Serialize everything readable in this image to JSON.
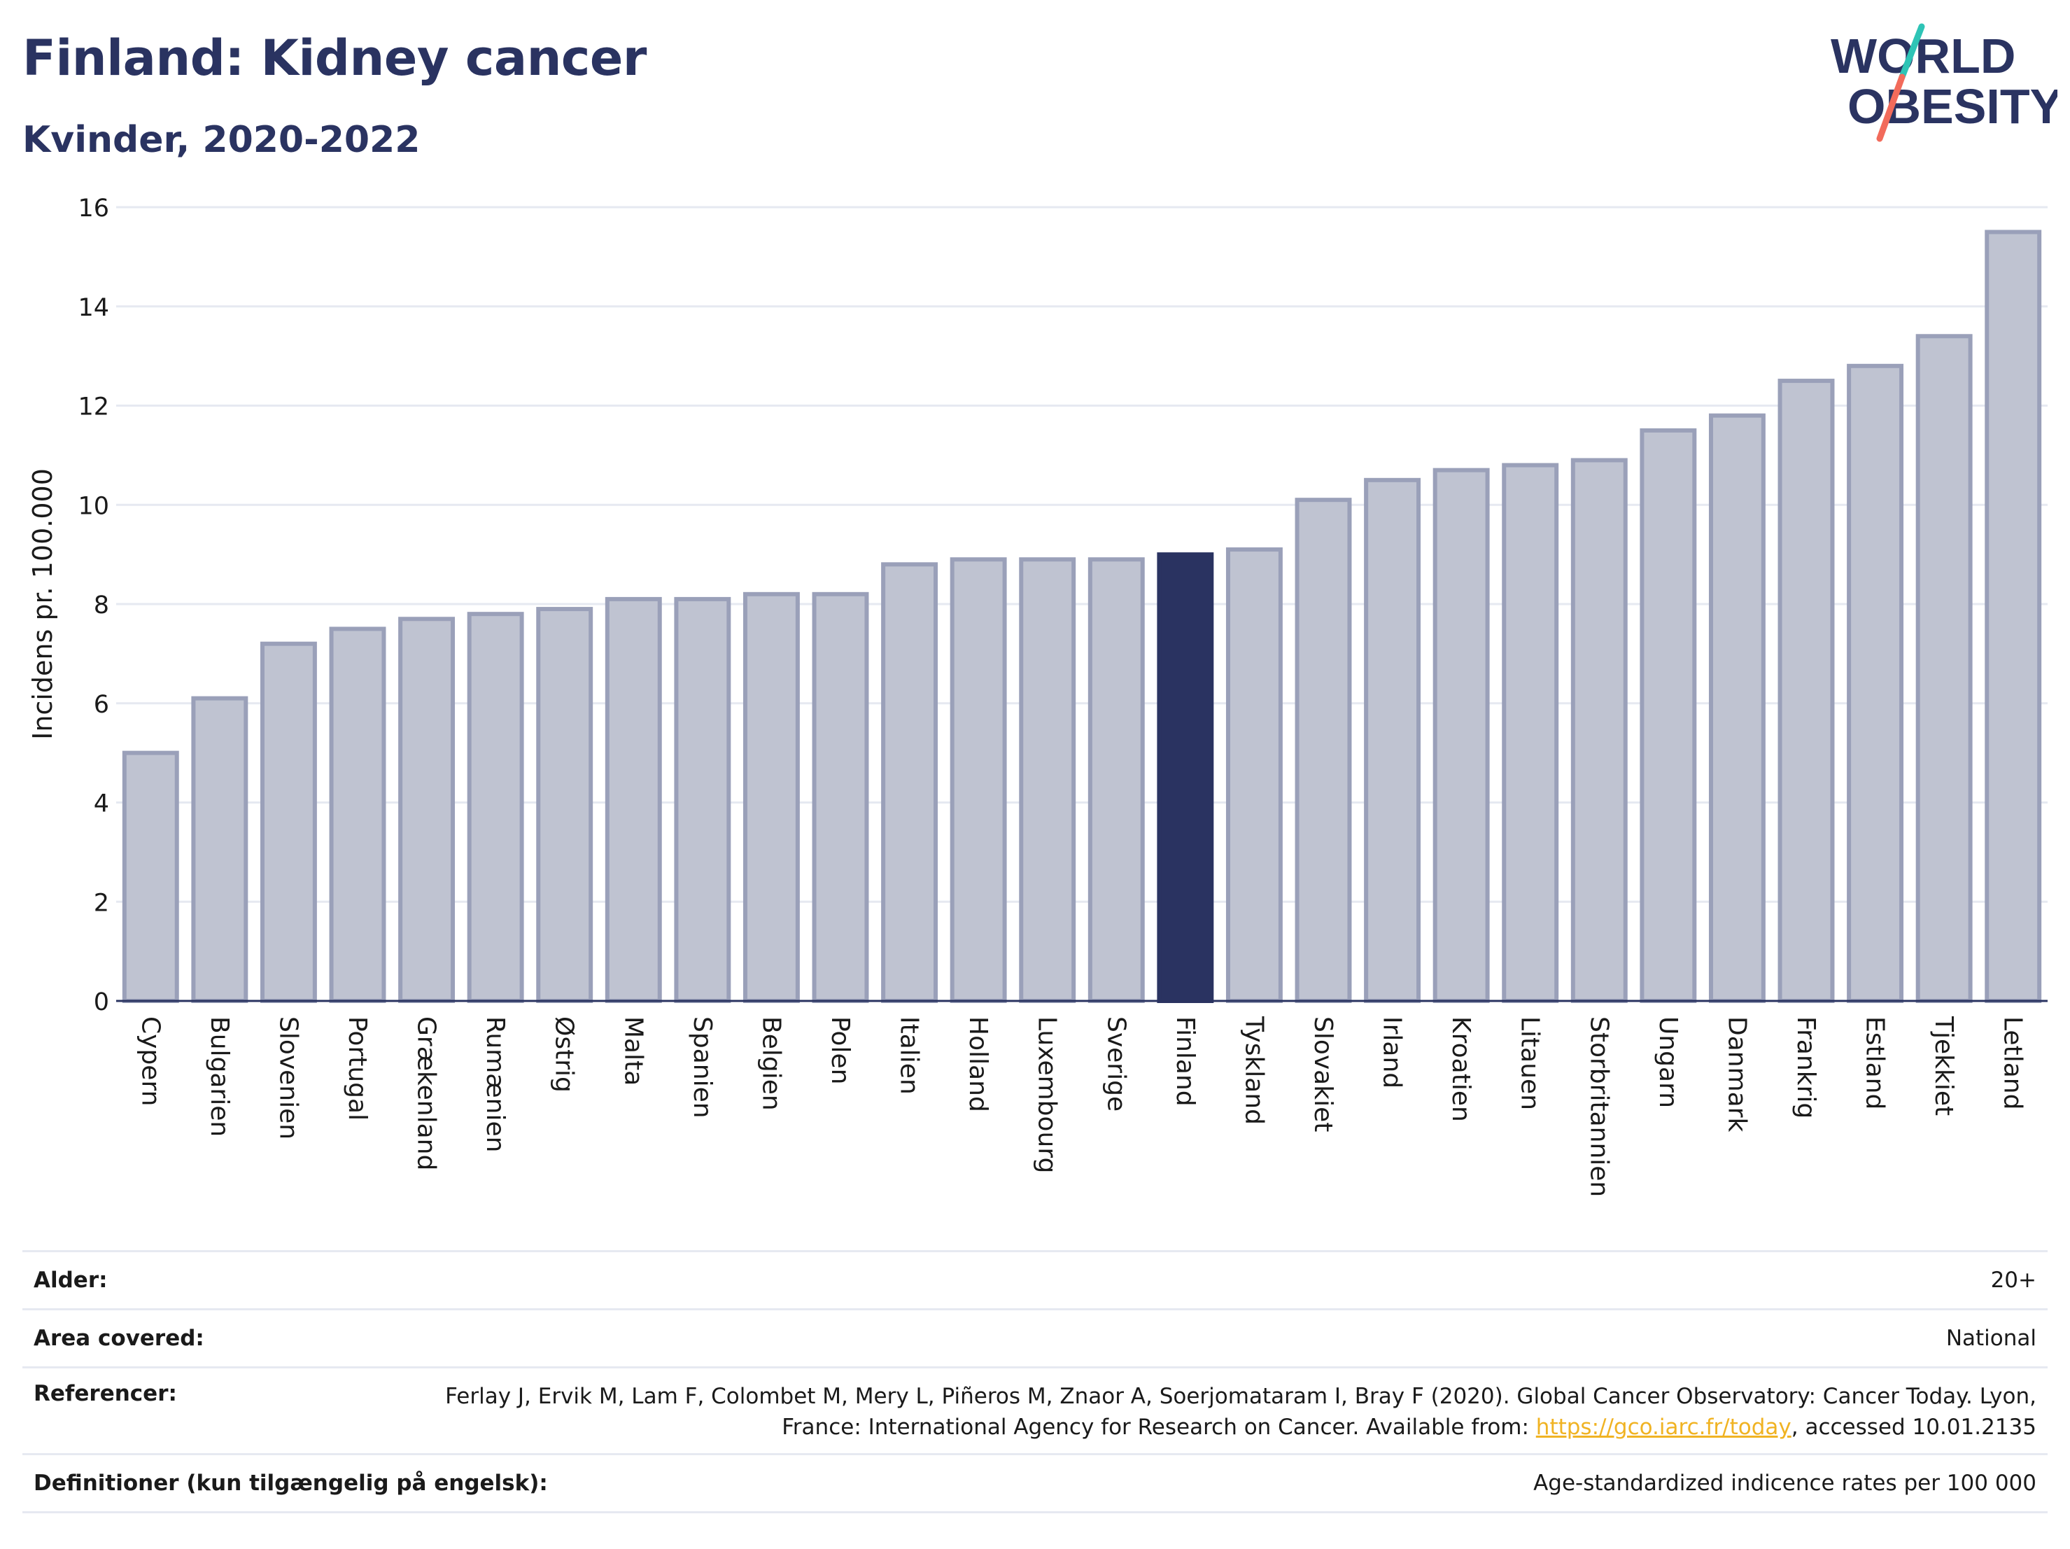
{
  "header": {
    "title": "Finland: Kidney cancer",
    "subtitle": "Kvinder, 2020-2022"
  },
  "logo": {
    "line1": "WORLD",
    "line2": "OBESITY"
  },
  "colors": {
    "highlight_bar": "#2a3361",
    "default_bar_fill": "#bfc3d1",
    "default_bar_stroke": "#9aa0b9",
    "gridline": "#e6e9f1",
    "link": "#f0b323",
    "logo_teal": "#2ec4b6",
    "logo_coral": "#f26b5b"
  },
  "chart_data": {
    "type": "bar",
    "title": "",
    "xlabel": "",
    "ylabel": "Incidens pr. 100.000",
    "ylim": [
      0,
      16
    ],
    "yticks": [
      0,
      2,
      4,
      6,
      8,
      10,
      12,
      14,
      16
    ],
    "grid": true,
    "highlight": "Finland",
    "categories": [
      "Cypern",
      "Bulgarien",
      "Slovenien",
      "Portugal",
      "Grækenland",
      "Rumænien",
      "Østrig",
      "Malta",
      "Spanien",
      "Belgien",
      "Polen",
      "Italien",
      "Holland",
      "Luxembourg",
      "Sverige",
      "Finland",
      "Tyskland",
      "Slovakiet",
      "Irland",
      "Kroatien",
      "Litauen",
      "Storbritannien",
      "Ungarn",
      "Danmark",
      "Frankrig",
      "Estland",
      "Tjekkiet",
      "Letland"
    ],
    "values": [
      5.0,
      6.1,
      7.2,
      7.5,
      7.7,
      7.8,
      7.9,
      8.1,
      8.1,
      8.2,
      8.2,
      8.8,
      8.9,
      8.9,
      8.9,
      9.0,
      9.1,
      10.1,
      10.5,
      10.7,
      10.8,
      10.9,
      11.5,
      11.8,
      12.5,
      12.8,
      13.4,
      15.5
    ]
  },
  "footer": {
    "rows": [
      {
        "label": "Alder:",
        "value": "20+"
      },
      {
        "label": "Area covered:",
        "value": "National"
      },
      {
        "label": "Referencer:",
        "value_pre": "Ferlay J, Ervik M, Lam F, Colombet M, Mery L, Piñeros M, Znaor A, Soerjomataram I, Bray F (2020). Global Cancer Observatory: Cancer Today. Lyon, France: International Agency for Research on Cancer. Available from: ",
        "link": "https://gco.iarc.fr/today",
        "value_post": ", accessed 10.01.2135"
      },
      {
        "label": "Definitioner (kun tilgængelig på engelsk):",
        "value": "Age-standardized indicence rates per 100 000"
      }
    ]
  }
}
